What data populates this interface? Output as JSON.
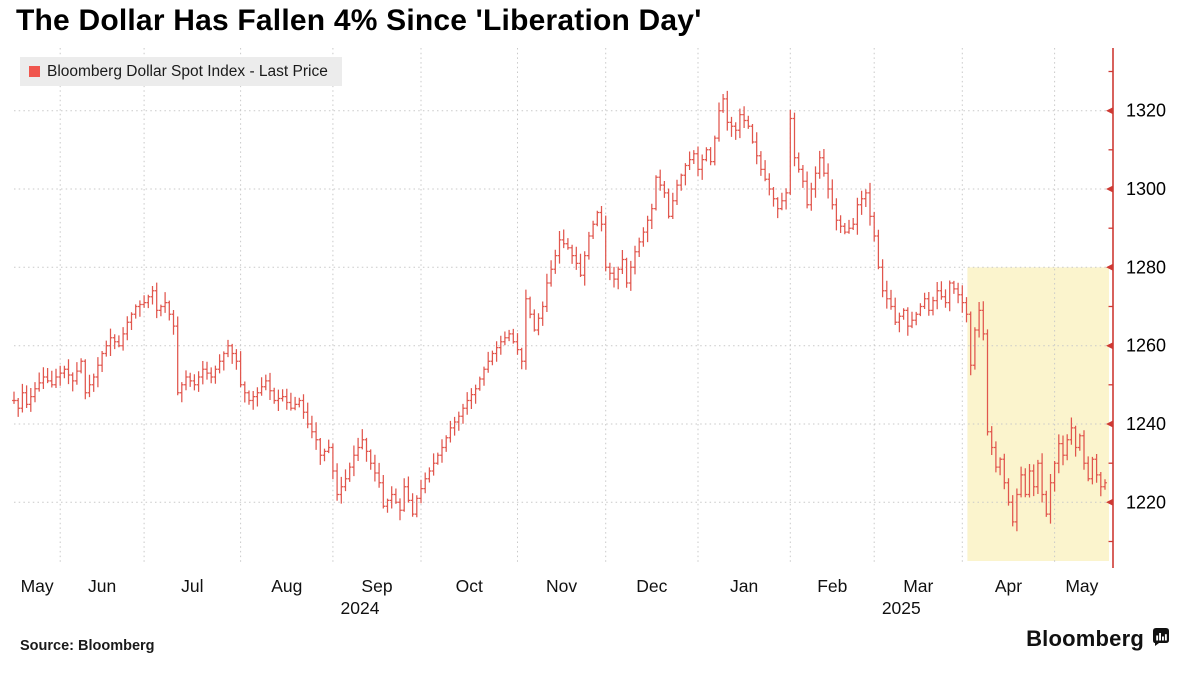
{
  "title": "The Dollar Has Fallen 4% Since 'Liberation Day'",
  "legend": {
    "label": "Bloomberg Dollar Spot Index - Last Price",
    "swatch_color": "#f0564e",
    "background": "#ececec"
  },
  "source_text": "Source: Bloomberg",
  "brand": {
    "name": "Bloomberg",
    "icon": "bloomberg-terminal-icon"
  },
  "chart_data": {
    "type": "bar",
    "subtype": "ohlc-daily-bars",
    "series_name": "Bloomberg Dollar Spot Index - Last Price",
    "title": "The Dollar Has Fallen 4% Since 'Liberation Day'",
    "x_axis": {
      "month_labels": [
        "May",
        "Jun",
        "Jul",
        "Aug",
        "Sep",
        "Oct",
        "Nov",
        "Dec",
        "Jan",
        "Feb",
        "Mar",
        "Apr",
        "May"
      ],
      "year_labels": [
        {
          "text": "2024",
          "under_month_index": 4
        },
        {
          "text": "2025",
          "under_month_index": 10
        }
      ],
      "month_boundary_day_indices": [
        0,
        11,
        31,
        54,
        76,
        97,
        120,
        141,
        163,
        185,
        205,
        226,
        248,
        261
      ],
      "total_days": 261,
      "grid": true
    },
    "y_axis": {
      "side": "right",
      "min": 1204,
      "max": 1336,
      "major_ticks": [
        1220,
        1240,
        1260,
        1280,
        1300,
        1320
      ],
      "minor_tick_step": 10,
      "grid": true
    },
    "highlight_region": {
      "label": "since-liberation-day",
      "start_day_index": 227.2,
      "price_top": 1280,
      "color": "#fbf4cd"
    },
    "close_anchors": [
      [
        0,
        1246
      ],
      [
        1,
        1244
      ],
      [
        2,
        1248
      ],
      [
        3,
        1245
      ],
      [
        5,
        1249
      ],
      [
        7,
        1252
      ],
      [
        9,
        1250
      ],
      [
        10,
        1252
      ],
      [
        12,
        1254
      ],
      [
        14,
        1251
      ],
      [
        16,
        1256
      ],
      [
        17,
        1248
      ],
      [
        19,
        1252
      ],
      [
        21,
        1258
      ],
      [
        23,
        1262
      ],
      [
        25,
        1260
      ],
      [
        27,
        1266
      ],
      [
        29,
        1270
      ],
      [
        31,
        1271
      ],
      [
        33,
        1274
      ],
      [
        34,
        1269
      ],
      [
        36,
        1271
      ],
      [
        38,
        1265
      ],
      [
        39,
        1248
      ],
      [
        41,
        1252
      ],
      [
        43,
        1250
      ],
      [
        45,
        1254
      ],
      [
        47,
        1252
      ],
      [
        49,
        1256
      ],
      [
        51,
        1260
      ],
      [
        53,
        1256
      ],
      [
        54,
        1250
      ],
      [
        56,
        1246
      ],
      [
        58,
        1248
      ],
      [
        60,
        1251
      ],
      [
        62,
        1246
      ],
      [
        64,
        1247
      ],
      [
        66,
        1244
      ],
      [
        68,
        1246
      ],
      [
        70,
        1240
      ],
      [
        72,
        1236
      ],
      [
        73,
        1232
      ],
      [
        75,
        1234
      ],
      [
        76,
        1228
      ],
      [
        77,
        1222
      ],
      [
        79,
        1226
      ],
      [
        81,
        1232
      ],
      [
        83,
        1236
      ],
      [
        85,
        1230
      ],
      [
        87,
        1225
      ],
      [
        88,
        1219
      ],
      [
        90,
        1222
      ],
      [
        92,
        1218
      ],
      [
        93,
        1224
      ],
      [
        95,
        1217
      ],
      [
        96,
        1221
      ],
      [
        98,
        1226
      ],
      [
        100,
        1230
      ],
      [
        102,
        1234
      ],
      [
        104,
        1239
      ],
      [
        106,
        1242
      ],
      [
        108,
        1246
      ],
      [
        110,
        1249
      ],
      [
        112,
        1254
      ],
      [
        114,
        1258
      ],
      [
        116,
        1261
      ],
      [
        118,
        1263
      ],
      [
        120,
        1259
      ],
      [
        121,
        1256
      ],
      [
        122,
        1272
      ],
      [
        123,
        1268
      ],
      [
        124,
        1264
      ],
      [
        126,
        1270
      ],
      [
        127,
        1276
      ],
      [
        129,
        1283
      ],
      [
        130,
        1287
      ],
      [
        132,
        1285
      ],
      [
        134,
        1281
      ],
      [
        135,
        1278
      ],
      [
        137,
        1288
      ],
      [
        139,
        1294
      ],
      [
        140,
        1291
      ],
      [
        141,
        1280
      ],
      [
        143,
        1277
      ],
      [
        145,
        1282
      ],
      [
        146,
        1276
      ],
      [
        148,
        1284
      ],
      [
        150,
        1289
      ],
      [
        152,
        1295
      ],
      [
        153,
        1303
      ],
      [
        155,
        1299
      ],
      [
        156,
        1293
      ],
      [
        158,
        1301
      ],
      [
        160,
        1306
      ],
      [
        162,
        1309
      ],
      [
        163,
        1305
      ],
      [
        165,
        1310
      ],
      [
        166,
        1307
      ],
      [
        167,
        1313
      ],
      [
        168,
        1320
      ],
      [
        169,
        1323
      ],
      [
        170,
        1317
      ],
      [
        172,
        1315
      ],
      [
        173,
        1319
      ],
      [
        175,
        1316
      ],
      [
        176,
        1312
      ],
      [
        178,
        1305
      ],
      [
        180,
        1300
      ],
      [
        182,
        1295
      ],
      [
        184,
        1299
      ],
      [
        185,
        1318
      ],
      [
        186,
        1308
      ],
      [
        188,
        1302
      ],
      [
        189,
        1296
      ],
      [
        191,
        1304
      ],
      [
        192,
        1308
      ],
      [
        194,
        1300
      ],
      [
        196,
        1292
      ],
      [
        198,
        1289
      ],
      [
        200,
        1291
      ],
      [
        201,
        1296
      ],
      [
        203,
        1299
      ],
      [
        204,
        1293
      ],
      [
        205,
        1288
      ],
      [
        206,
        1280
      ],
      [
        207,
        1274
      ],
      [
        209,
        1270
      ],
      [
        210,
        1266
      ],
      [
        212,
        1269
      ],
      [
        213,
        1265
      ],
      [
        215,
        1268
      ],
      [
        217,
        1272
      ],
      [
        218,
        1269
      ],
      [
        220,
        1274
      ],
      [
        222,
        1271
      ],
      [
        223,
        1276
      ],
      [
        225,
        1273
      ],
      [
        226,
        1271
      ],
      [
        227,
        1268
      ],
      [
        228,
        1255
      ],
      [
        229,
        1264
      ],
      [
        230,
        1269
      ],
      [
        231,
        1263
      ],
      [
        232,
        1238
      ],
      [
        233,
        1234
      ],
      [
        234,
        1229
      ],
      [
        235,
        1231
      ],
      [
        236,
        1225
      ],
      [
        237,
        1220
      ],
      [
        238,
        1215
      ],
      [
        239,
        1222
      ],
      [
        240,
        1227
      ],
      [
        241,
        1222
      ],
      [
        242,
        1228
      ],
      [
        243,
        1224
      ],
      [
        244,
        1230
      ],
      [
        245,
        1222
      ],
      [
        246,
        1217
      ],
      [
        247,
        1225
      ],
      [
        248,
        1230
      ],
      [
        249,
        1235
      ],
      [
        250,
        1232
      ],
      [
        251,
        1236
      ],
      [
        252,
        1239
      ],
      [
        253,
        1234
      ],
      [
        254,
        1237
      ],
      [
        255,
        1230
      ],
      [
        256,
        1226
      ],
      [
        257,
        1231
      ],
      [
        258,
        1227
      ],
      [
        259,
        1224
      ],
      [
        260,
        1225
      ]
    ],
    "colors": {
      "bar": "#e1564d",
      "axis": "#ce3a34",
      "grid": "#c9c9c9",
      "tick_label": "#000000",
      "month_label": "#111111"
    },
    "legend_position": "top-left"
  }
}
